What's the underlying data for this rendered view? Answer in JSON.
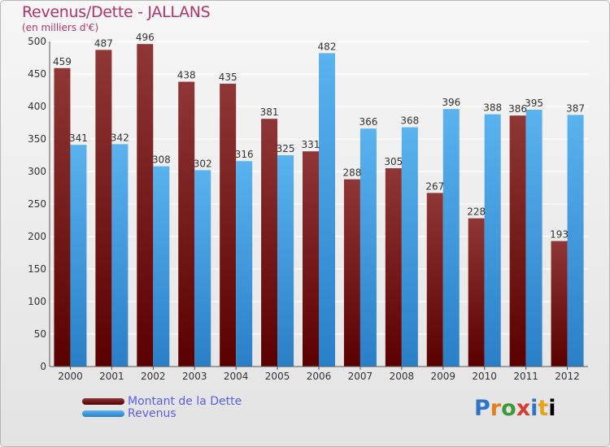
{
  "chart_data": {
    "type": "bar",
    "title": "Revenus/Dette - JALLANS",
    "subtitle": "(en milliers d'€)",
    "categories": [
      "2000",
      "2001",
      "2002",
      "2003",
      "2004",
      "2005",
      "2006",
      "2007",
      "2008",
      "2009",
      "2010",
      "2011",
      "2012"
    ],
    "series": [
      {
        "name": "Montant de la Dette",
        "color": "#7e1f1f",
        "values": [
          459,
          487,
          496,
          438,
          435,
          381,
          331,
          288,
          305,
          267,
          228,
          386,
          193
        ]
      },
      {
        "name": "Revenus",
        "color": "#4fa3e3",
        "values": [
          341,
          342,
          308,
          302,
          316,
          325,
          482,
          366,
          368,
          396,
          388,
          395,
          387
        ]
      }
    ],
    "ylim": [
      0,
      500
    ],
    "yticks": [
      0,
      50,
      100,
      150,
      200,
      250,
      300,
      350,
      400,
      450,
      500
    ],
    "grid": true,
    "legend": "bottom-left"
  },
  "logo": {
    "letters": [
      "P",
      "r",
      "o",
      "x",
      "i",
      "t",
      "i"
    ]
  }
}
